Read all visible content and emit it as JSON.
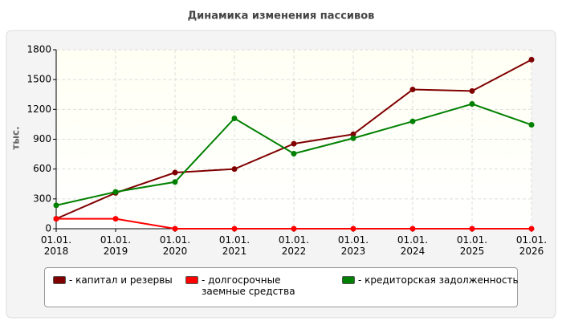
{
  "chart_data": {
    "type": "line",
    "title": "Динамика изменения пассивов",
    "y_label": "тыс.",
    "categories": [
      "01.01. 2018",
      "01.01. 2019",
      "01.01. 2020",
      "01.01. 2021",
      "01.01. 2022",
      "01.01. 2023",
      "01.01. 2024",
      "01.01. 2025",
      "01.01. 2026"
    ],
    "series": [
      {
        "name": "- капитал и резервы",
        "color": "#800000",
        "values": [
          100,
          360,
          565,
          600,
          855,
          950,
          1400,
          1385,
          1700
        ]
      },
      {
        "name": "- долгосрочные заемные средства",
        "color": "#ff0000",
        "values": [
          100,
          100,
          0,
          0,
          0,
          0,
          0,
          0,
          0
        ]
      },
      {
        "name": "- кредиторская задолженность",
        "color": "#008000",
        "values": [
          235,
          370,
          470,
          1110,
          755,
          910,
          1080,
          1255,
          1045
        ]
      }
    ],
    "ylim": [
      0,
      1800
    ],
    "yticks": [
      0,
      300,
      600,
      900,
      1200,
      1500,
      1800
    ],
    "grid": true
  }
}
